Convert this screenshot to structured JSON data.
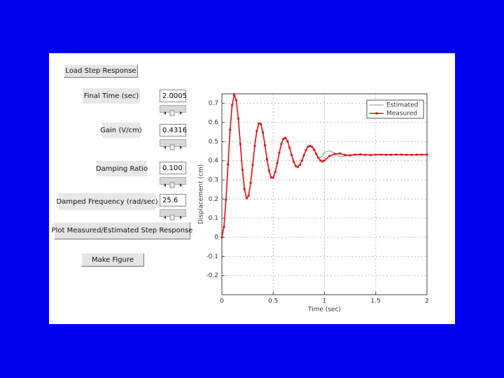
{
  "load_button": "Load Step Response",
  "parameters": [
    {
      "label": "Final Time (sec)",
      "value": "2.0005"
    },
    {
      "label": "Gain (V/cm)",
      "value": "0.4316"
    },
    {
      "label": "Damping Ratio",
      "value": "0.100"
    },
    {
      "label": "Damped Frequency (rad/sec)",
      "value": "25.6"
    }
  ],
  "plot_button": "Plot Measured/Estimated Step Response",
  "figure_button": "Make Figure",
  "chart_data": {
    "type": "line",
    "x_label": "Time (sec)",
    "y_label": "Displacement (cm)",
    "x": [
      0,
      0.02,
      0.04,
      0.06,
      0.08,
      0.1,
      0.12,
      0.14,
      0.16,
      0.18,
      0.2,
      0.22,
      0.24,
      0.26,
      0.28,
      0.3,
      0.32,
      0.34,
      0.36,
      0.38,
      0.4,
      0.42,
      0.44,
      0.46,
      0.48,
      0.5,
      0.52,
      0.54,
      0.56,
      0.58,
      0.6,
      0.62,
      0.64,
      0.66,
      0.68,
      0.7,
      0.72,
      0.74,
      0.76,
      0.78,
      0.8,
      0.82,
      0.84,
      0.86,
      0.88,
      0.9,
      0.92,
      0.94,
      0.96,
      0.98,
      1.0,
      1.05,
      1.1,
      1.15,
      1.2,
      1.25,
      1.3,
      1.35,
      1.4,
      1.45,
      1.5,
      1.55,
      1.6,
      1.65,
      1.7,
      1.75,
      1.8,
      1.85,
      1.9,
      1.95,
      2.0
    ],
    "series": [
      {
        "name": "Estimated",
        "color": "#8c8c8c",
        "marker": false,
        "values": [
          0,
          0.054,
          0.196,
          0.381,
          0.562,
          0.691,
          0.745,
          0.717,
          0.62,
          0.487,
          0.353,
          0.252,
          0.204,
          0.217,
          0.284,
          0.378,
          0.477,
          0.555,
          0.595,
          0.592,
          0.548,
          0.481,
          0.408,
          0.348,
          0.313,
          0.312,
          0.341,
          0.388,
          0.442,
          0.488,
          0.515,
          0.519,
          0.502,
          0.468,
          0.43,
          0.395,
          0.373,
          0.367,
          0.378,
          0.401,
          0.429,
          0.455,
          0.473,
          0.478,
          0.472,
          0.457,
          0.436,
          0.42,
          0.415,
          0.425,
          0.445,
          0.452,
          0.44,
          0.42,
          0.425,
          0.43,
          0.433,
          0.433,
          0.431,
          0.43,
          0.432,
          0.432,
          0.431,
          0.431,
          0.432,
          0.432,
          0.431,
          0.431,
          0.432,
          0.432,
          0.432
        ]
      },
      {
        "name": "Measured",
        "color": "#dd1111",
        "marker": true,
        "values": [
          0,
          0.054,
          0.196,
          0.381,
          0.562,
          0.691,
          0.745,
          0.717,
          0.62,
          0.487,
          0.353,
          0.252,
          0.204,
          0.217,
          0.284,
          0.378,
          0.477,
          0.555,
          0.595,
          0.592,
          0.548,
          0.481,
          0.408,
          0.348,
          0.313,
          0.312,
          0.341,
          0.388,
          0.442,
          0.488,
          0.515,
          0.519,
          0.502,
          0.468,
          0.43,
          0.395,
          0.373,
          0.367,
          0.378,
          0.401,
          0.429,
          0.455,
          0.473,
          0.478,
          0.472,
          0.457,
          0.436,
          0.416,
          0.402,
          0.397,
          0.401,
          0.425,
          0.435,
          0.438,
          0.43,
          0.428,
          0.432,
          0.433,
          0.431,
          0.43,
          0.432,
          0.432,
          0.431,
          0.431,
          0.432,
          0.432,
          0.431,
          0.431,
          0.432,
          0.432,
          0.432
        ]
      }
    ],
    "xlim": [
      0,
      2
    ],
    "xticks": [
      0,
      0.5,
      1,
      1.5,
      2
    ],
    "ylim": [
      -0.3,
      0.75
    ],
    "yticks": [
      -0.2,
      -0.1,
      0,
      0.1,
      0.2,
      0.3,
      0.4,
      0.5,
      0.6,
      0.7
    ],
    "grid": true,
    "legend": "top-right"
  }
}
